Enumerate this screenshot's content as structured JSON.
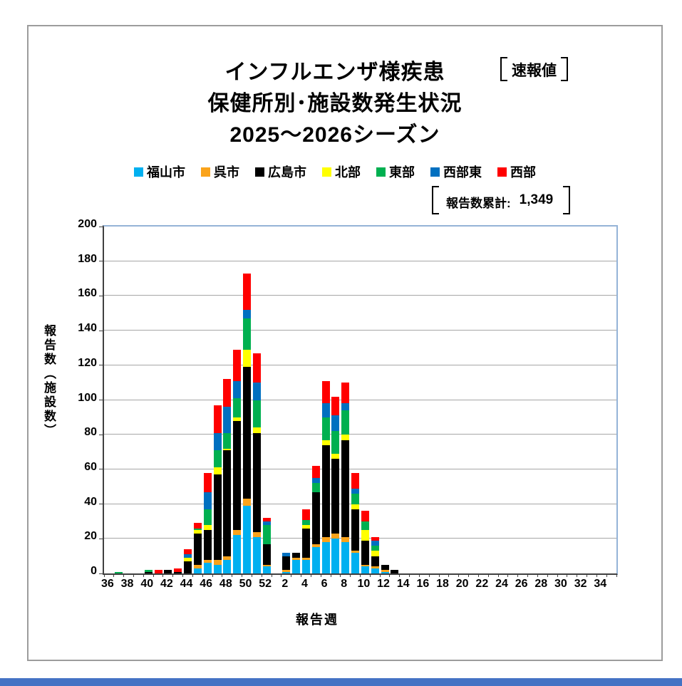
{
  "page": {
    "background": "#ffffff",
    "frame_border_color": "#9c9c9c",
    "bottom_strip_color": "#4472c4"
  },
  "title": {
    "line1": "インフルエンザ様疾患",
    "badge": "速報値",
    "line2": "保健所別･施設数発生状況",
    "line3": "2025～2026シーズン"
  },
  "annotation": {
    "label": "報告数累計:",
    "value": "1,349"
  },
  "axes": {
    "y_title": "報告数（施設数）",
    "x_title": "報告週"
  },
  "chart_data": {
    "type": "bar",
    "stacked": true,
    "title": "インフルエンザ様疾患 保健所別･施設数発生状況 2025～2026シーズン",
    "xlabel": "報告週",
    "ylabel": "報告数(施設数)",
    "ylim": [
      0,
      200
    ],
    "ytick_step": 20,
    "grid": true,
    "legend_position": "top",
    "total_reports": 1349,
    "axis_color": "#404040",
    "gridline_color": "#a6a6a6",
    "plot_frame_color": "#95b3d7",
    "categories": [
      "36",
      "37",
      "38",
      "39",
      "40",
      "41",
      "42",
      "43",
      "44",
      "45",
      "46",
      "47",
      "48",
      "49",
      "50",
      "51",
      "52",
      "1",
      "2",
      "3",
      "4",
      "5",
      "6",
      "7",
      "8",
      "9",
      "10",
      "11",
      "12",
      "13",
      "14",
      "15",
      "16",
      "17",
      "18",
      "19",
      "20",
      "21",
      "22",
      "23",
      "24",
      "25",
      "26",
      "27",
      "28",
      "29",
      "30",
      "31",
      "32",
      "33",
      "34",
      "35"
    ],
    "series": [
      {
        "name": "福山市",
        "color": "#00B0F0",
        "values": [
          0,
          0,
          0,
          0,
          0,
          0,
          0,
          0,
          0,
          3,
          6,
          5,
          8,
          22,
          39,
          21,
          4,
          0,
          1,
          8,
          8,
          15,
          18,
          20,
          18,
          12,
          4,
          3,
          1,
          0,
          0,
          0,
          0,
          0,
          0,
          0,
          0,
          0,
          0,
          0,
          0,
          0,
          0,
          0,
          0,
          0,
          0,
          0,
          0,
          0,
          0,
          0
        ]
      },
      {
        "name": "呉市",
        "color": "#FAA31B",
        "values": [
          0,
          0,
          0,
          0,
          0,
          0,
          0,
          0,
          0,
          2,
          2,
          3,
          2,
          3,
          4,
          3,
          1,
          0,
          1,
          1,
          1,
          2,
          3,
          3,
          3,
          1,
          1,
          1,
          1,
          0,
          0,
          0,
          0,
          0,
          0,
          0,
          0,
          0,
          0,
          0,
          0,
          0,
          0,
          0,
          0,
          0,
          0,
          0,
          0,
          0,
          0,
          0
        ]
      },
      {
        "name": "広島市",
        "color": "#000000",
        "values": [
          0,
          0,
          0,
          0,
          1,
          0,
          2,
          1,
          7,
          18,
          17,
          49,
          61,
          63,
          76,
          57,
          12,
          0,
          8,
          3,
          17,
          30,
          53,
          43,
          56,
          24,
          14,
          6,
          3,
          2,
          0,
          0,
          0,
          0,
          0,
          0,
          0,
          0,
          0,
          0,
          0,
          0,
          0,
          0,
          0,
          0,
          0,
          0,
          0,
          0,
          0,
          0
        ]
      },
      {
        "name": "北部",
        "color": "#FFFF00",
        "values": [
          0,
          0,
          0,
          0,
          0,
          0,
          0,
          0,
          2,
          2,
          3,
          4,
          1,
          2,
          10,
          3,
          0,
          0,
          0,
          0,
          2,
          0,
          3,
          3,
          3,
          3,
          6,
          3,
          0,
          0,
          0,
          0,
          0,
          0,
          0,
          0,
          0,
          0,
          0,
          0,
          0,
          0,
          0,
          0,
          0,
          0,
          0,
          0,
          0,
          0,
          0,
          0
        ]
      },
      {
        "name": "東部",
        "color": "#00B050",
        "values": [
          0,
          1,
          0,
          0,
          1,
          0,
          0,
          0,
          0,
          1,
          9,
          10,
          9,
          11,
          18,
          16,
          11,
          0,
          0,
          0,
          3,
          5,
          13,
          13,
          14,
          6,
          5,
          3,
          0,
          0,
          0,
          0,
          0,
          0,
          0,
          0,
          0,
          0,
          0,
          0,
          0,
          0,
          0,
          0,
          0,
          0,
          0,
          0,
          0,
          0,
          0,
          0
        ]
      },
      {
        "name": "西部東",
        "color": "#0070C0",
        "values": [
          0,
          0,
          0,
          0,
          0,
          0,
          0,
          0,
          2,
          0,
          10,
          10,
          15,
          10,
          5,
          10,
          2,
          0,
          2,
          0,
          0,
          3,
          8,
          9,
          4,
          3,
          0,
          3,
          0,
          0,
          0,
          0,
          0,
          0,
          0,
          0,
          0,
          0,
          0,
          0,
          0,
          0,
          0,
          0,
          0,
          0,
          0,
          0,
          0,
          0,
          0,
          0
        ]
      },
      {
        "name": "西部",
        "color": "#FF0000",
        "values": [
          0,
          0,
          0,
          0,
          0,
          2,
          0,
          2,
          3,
          3,
          11,
          16,
          16,
          18,
          21,
          17,
          2,
          0,
          0,
          0,
          6,
          7,
          13,
          11,
          12,
          9,
          6,
          2,
          0,
          0,
          0,
          0,
          0,
          0,
          0,
          0,
          0,
          0,
          0,
          0,
          0,
          0,
          0,
          0,
          0,
          0,
          0,
          0,
          0,
          0,
          0,
          0
        ]
      }
    ],
    "x_labels_shown": [
      "36",
      "38",
      "40",
      "42",
      "44",
      "46",
      "48",
      "50",
      "52",
      "2",
      "4",
      "6",
      "8",
      "10",
      "12",
      "14",
      "16",
      "18",
      "20",
      "22",
      "24",
      "26",
      "28",
      "30",
      "32",
      "34"
    ]
  }
}
